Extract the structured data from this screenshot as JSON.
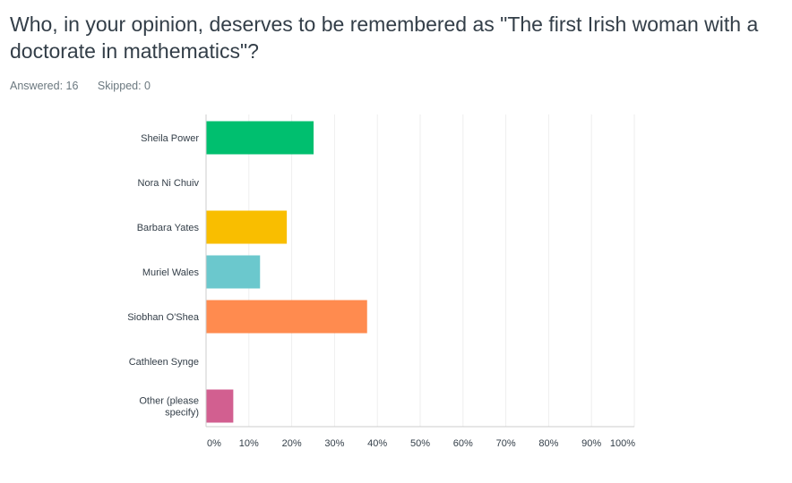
{
  "question": {
    "title": "Who, in your opinion, deserves to be remembered as \"The first Irish woman with a doctorate in mathematics\"?"
  },
  "stats": {
    "answered": "Answered: 16",
    "skipped": "Skipped: 0"
  },
  "chart_data": {
    "type": "bar",
    "orientation": "horizontal",
    "categories": [
      [
        "Sheila Power"
      ],
      [
        "Nora Ni Chuiv"
      ],
      [
        "Barbara Yates"
      ],
      [
        "Muriel Wales"
      ],
      [
        "Siobhan O'Shea"
      ],
      [
        "Cathleen Synge"
      ],
      [
        "Other (please",
        "specify)"
      ]
    ],
    "values": [
      25,
      0,
      18.75,
      12.5,
      37.5,
      0,
      6.25
    ],
    "colors": [
      "#00bf6f",
      "#00bf6f",
      "#f9be00",
      "#6bc8cd",
      "#ff8b4f",
      "#ff8b4f",
      "#d25f90"
    ],
    "xlim": [
      0,
      100
    ],
    "xticks": [
      "0%",
      "10%",
      "20%",
      "30%",
      "40%",
      "50%",
      "60%",
      "70%",
      "80%",
      "90%",
      "100%"
    ],
    "grid": true,
    "grid_color": "#eeeeee",
    "axis_color": "#cccccc"
  }
}
